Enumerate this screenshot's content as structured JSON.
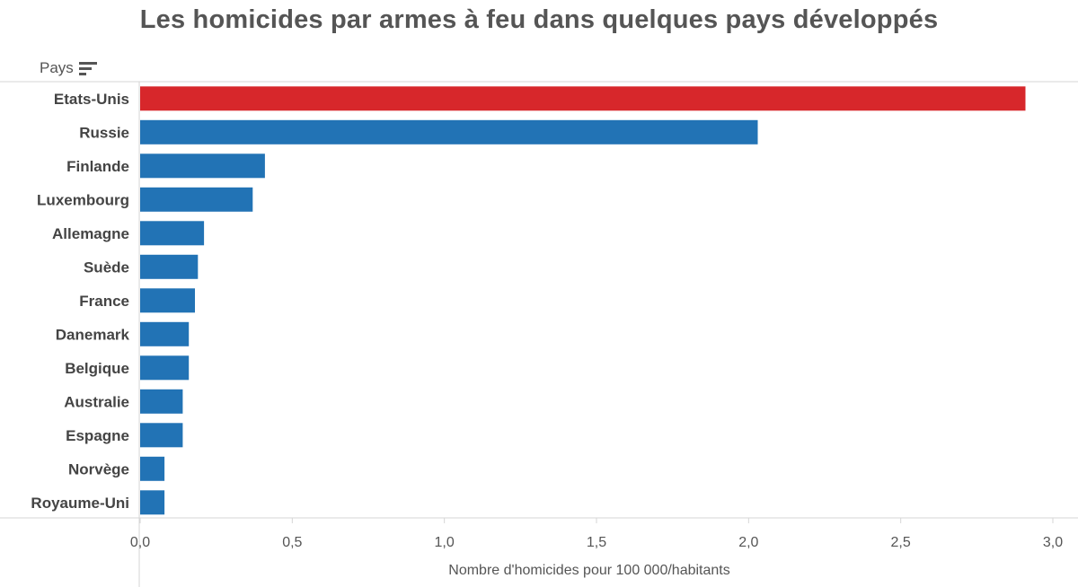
{
  "title": "Les homicides par armes à feu dans quelques pays développés",
  "dimension_header": "Pays",
  "sort_icon": "sort-descending-icon",
  "colors": {
    "highlight": "#D7272B",
    "default": "#2273B5"
  },
  "chart_data": {
    "type": "bar",
    "orientation": "horizontal",
    "title": "Les homicides par armes à feu dans quelques pays développés",
    "ylabel": "Pays",
    "xlabel": "Nombre d'homicides pour 100 000/habitants",
    "categories": [
      "Etats-Unis",
      "Russie",
      "Finlande",
      "Luxembourg",
      "Allemagne",
      "Suède",
      "France",
      "Danemark",
      "Belgique",
      "Australie",
      "Espagne",
      "Norvège",
      "Royaume-Uni"
    ],
    "values": [
      2.91,
      2.03,
      0.41,
      0.37,
      0.21,
      0.19,
      0.18,
      0.16,
      0.16,
      0.14,
      0.14,
      0.08,
      0.08
    ],
    "highlight": [
      "Etats-Unis"
    ],
    "xlim": [
      0,
      3.0
    ],
    "xticks": [
      "0,0",
      "0,5",
      "1,0",
      "1,5",
      "2,0",
      "2,5",
      "3,0"
    ],
    "xtick_values": [
      0,
      0.5,
      1.0,
      1.5,
      2.0,
      2.5,
      3.0
    ],
    "grid": false
  }
}
